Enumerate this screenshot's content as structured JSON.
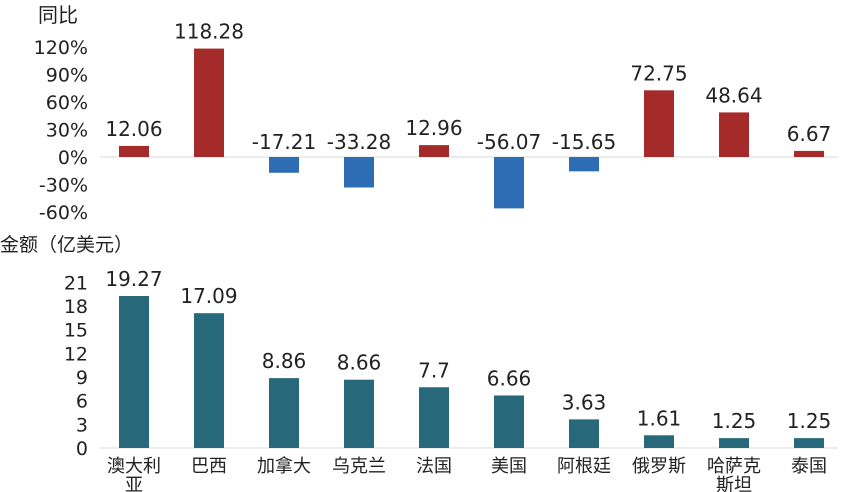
{
  "chart_data": [
    {
      "type": "bar",
      "title": "同比",
      "ylabel": "同比",
      "categories": [
        "澳大利亚",
        "巴西",
        "加拿大",
        "乌克兰",
        "法国",
        "美国",
        "阿根廷",
        "俄罗斯",
        "哈萨克斯坦",
        "泰国"
      ],
      "values": [
        12.06,
        118.28,
        -17.21,
        -33.28,
        12.96,
        -56.07,
        -15.65,
        72.75,
        48.64,
        6.67
      ],
      "value_labels": [
        "12.06",
        "118.28",
        "-17.21",
        "-33.28",
        "12.96",
        "-56.07",
        "-15.65",
        "72.75",
        "48.64",
        "6.67"
      ],
      "ylim": [
        -60,
        120
      ],
      "yticks": [
        -60,
        -30,
        0,
        30,
        60,
        90,
        120
      ],
      "ytick_labels": [
        "-60%",
        "-30%",
        "0%",
        "30%",
        "60%",
        "90%",
        "120%"
      ],
      "colors": {
        "positive": "#a52a2a",
        "negative": "#2e6db3"
      },
      "grid": false
    },
    {
      "type": "bar",
      "title": "金额（亿美元）",
      "ylabel": "金额（亿美元）",
      "categories": [
        "澳大利亚",
        "巴西",
        "加拿大",
        "乌克兰",
        "法国",
        "美国",
        "阿根廷",
        "俄罗斯",
        "哈萨克斯坦",
        "泰国"
      ],
      "category_label_lines": [
        [
          "澳大利",
          "亚"
        ],
        [
          "巴西"
        ],
        [
          "加拿大"
        ],
        [
          "乌克兰"
        ],
        [
          "法国"
        ],
        [
          "美国"
        ],
        [
          "阿根廷"
        ],
        [
          "俄罗斯"
        ],
        [
          "哈萨克",
          "斯坦"
        ],
        [
          "泰国"
        ]
      ],
      "values": [
        19.27,
        17.09,
        8.86,
        8.66,
        7.7,
        6.66,
        3.63,
        1.61,
        1.25,
        1.25
      ],
      "value_labels": [
        "19.27",
        "17.09",
        "8.86",
        "8.66",
        "7.7",
        "6.66",
        "3.63",
        "1.61",
        "1.25",
        "1.25"
      ],
      "ylim": [
        0,
        21
      ],
      "yticks": [
        0,
        3,
        6,
        9,
        12,
        15,
        18,
        21
      ],
      "ytick_labels": [
        "0",
        "3",
        "6",
        "9",
        "12",
        "15",
        "18",
        "21"
      ],
      "colors": {
        "bar": "#27687a"
      },
      "grid": false
    }
  ]
}
